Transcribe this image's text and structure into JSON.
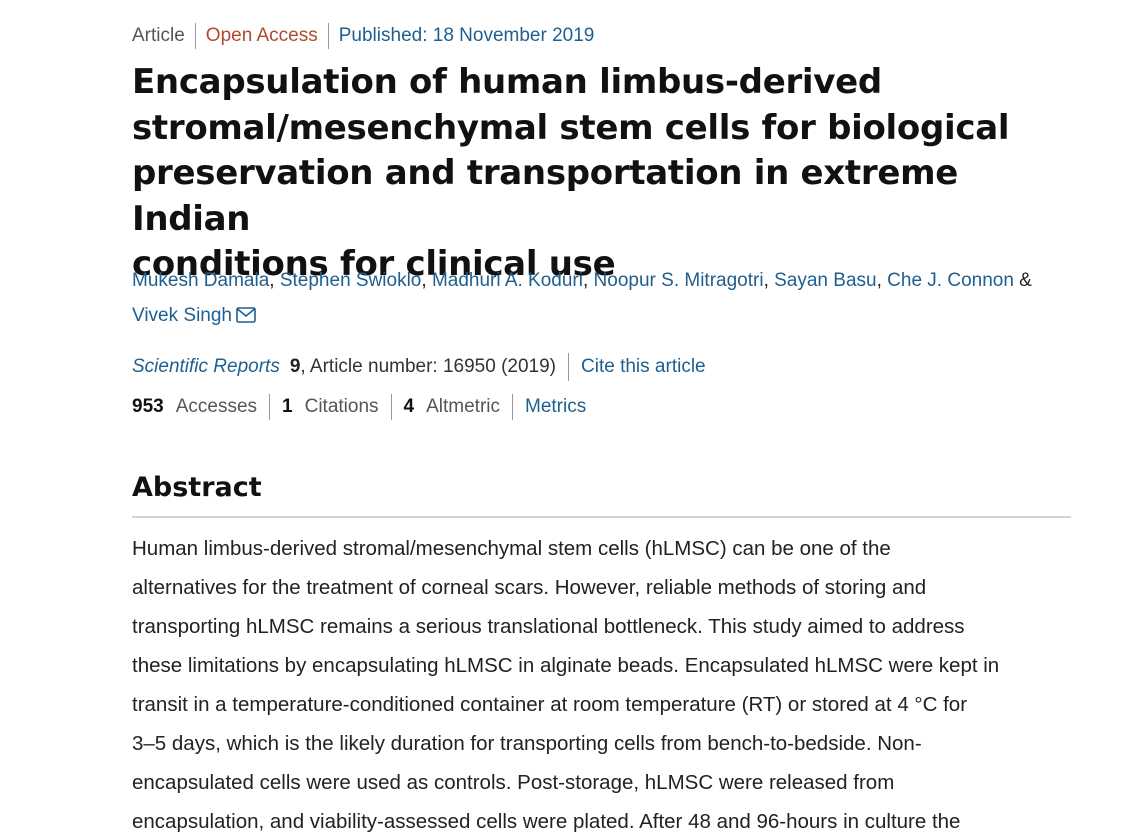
{
  "article_meta": {
    "type": "Article",
    "access": "Open Access",
    "published": "Published: 18 November 2019"
  },
  "title_lines": [
    "Encapsulation of human limbus-derived",
    "stromal/mesenchymal stem cells for biological",
    "preservation and transportation in extreme Indian",
    "conditions for clinical use"
  ],
  "authors": {
    "list": [
      "Mukesh Damala",
      "Stephen Swioklo",
      "Madhuri A. Koduri",
      "Noopur S. Mitragotri",
      "Sayan Basu",
      "Che J. Connon",
      "Vivek Singh"
    ],
    "separator": ", ",
    "ampersand": " & ",
    "corresponding_icon": "mail-icon"
  },
  "journal": {
    "name": "Scientific Reports",
    "volume": "9",
    "article_number": ", Article number: 16950 (2019)",
    "cite_label": "Cite this article"
  },
  "metrics": {
    "accesses_count": "953",
    "accesses_label": "Accesses",
    "citations_count": "1",
    "citations_label": "Citations",
    "altmetric_count": "4",
    "altmetric_label": "Altmetric",
    "metrics_link": "Metrics"
  },
  "abstract": {
    "heading": "Abstract",
    "lines": [
      "Human limbus-derived stromal/mesenchymal stem cells (hLMSC) can be one of the",
      "alternatives for the treatment of corneal scars. However, reliable methods of storing and",
      "transporting hLMSC remains a serious translational bottleneck. This study aimed to address",
      "these limitations by encapsulating hLMSC in alginate beads. Encapsulated hLMSC were kept in",
      "transit in a temperature-conditioned container at room temperature (RT) or stored at 4 °C for",
      "3–5 days, which is the likely duration for transporting cells from bench-to-bedside. Non-",
      "encapsulated cells were used as controls. Post-storage, hLMSC were released from",
      "encapsulation, and viability-assessed cells were plated. After 48 and 96-hours in culture the"
    ]
  },
  "colors": {
    "link": "#1f5f8f",
    "open_access": "#b1492d",
    "text": "#222222"
  }
}
